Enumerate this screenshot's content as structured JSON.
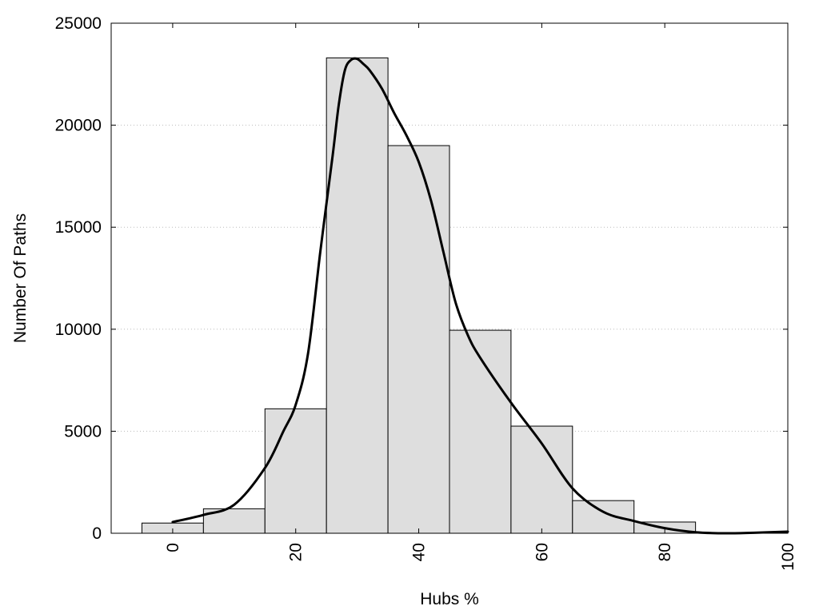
{
  "chart_data": {
    "type": "bar",
    "title": "",
    "xlabel": "Hubs %",
    "ylabel": "Number Of Paths",
    "xlim": [
      -10,
      100
    ],
    "ylim": [
      0,
      25000
    ],
    "bin_width": 10,
    "xticks": [
      0,
      20,
      40,
      60,
      80,
      100
    ],
    "yticks": [
      0,
      5000,
      10000,
      15000,
      20000,
      25000
    ],
    "bars": [
      {
        "x": 0,
        "value": 500
      },
      {
        "x": 10,
        "value": 1200
      },
      {
        "x": 20,
        "value": 6100
      },
      {
        "x": 30,
        "value": 23300
      },
      {
        "x": 40,
        "value": 19000
      },
      {
        "x": 50,
        "value": 9950
      },
      {
        "x": 60,
        "value": 5250
      },
      {
        "x": 70,
        "value": 1600
      },
      {
        "x": 80,
        "value": 550
      },
      {
        "x": 90,
        "value": 30
      }
    ],
    "density_curve": {
      "x": [
        0,
        5,
        10,
        15,
        18,
        20,
        22,
        24,
        26,
        27,
        28,
        29,
        30,
        31,
        32,
        34,
        36,
        38,
        40,
        42,
        44,
        46,
        48,
        50,
        55,
        60,
        65,
        70,
        75,
        80,
        85,
        90,
        95,
        100
      ],
      "y": [
        550,
        900,
        1400,
        3200,
        5000,
        6300,
        8800,
        13800,
        18500,
        21000,
        22700,
        23200,
        23250,
        23000,
        22700,
        21800,
        20600,
        19500,
        18200,
        16300,
        13800,
        11300,
        9700,
        8600,
        6400,
        4400,
        2200,
        1050,
        600,
        250,
        50,
        0,
        30,
        80
      ]
    },
    "bar_color": "#dedede",
    "bar_edge_color": "#000000",
    "curve_color": "#000000",
    "grid": "horizontal dotted",
    "legend": "none"
  }
}
